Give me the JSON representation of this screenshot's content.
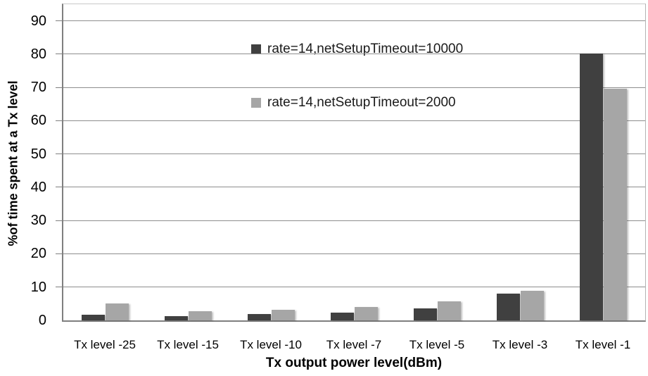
{
  "chart_data": {
    "type": "bar",
    "title": "",
    "xlabel": "Tx output power level(dBm)",
    "ylabel": "%of time spent at a Tx level",
    "categories": [
      "Tx level -25",
      "Tx level -15",
      "Tx level -10",
      "Tx level -7",
      "Tx level -5",
      "Tx level -3",
      "Tx level -1"
    ],
    "series": [
      {
        "name": "rate=14,netSetupTimeout=10000",
        "color": "#404040",
        "values": [
          1.8,
          1.2,
          2.0,
          2.4,
          3.7,
          8.0,
          80.2
        ]
      },
      {
        "name": "rate=14,netSetupTimeout=2000",
        "color": "#a6a6a6",
        "values": [
          5.0,
          2.8,
          3.2,
          4.1,
          5.8,
          8.9,
          69.7
        ]
      }
    ],
    "ylim": [
      0,
      95
    ],
    "yticks": [
      0,
      10,
      20,
      30,
      40,
      50,
      60,
      70,
      80,
      90
    ],
    "grid": true,
    "legend_position": "top-center-inside",
    "colors": {
      "gridline": "#8e8e8e",
      "axis": "#7f7f7f",
      "text": "#000000",
      "background": "#ffffff"
    }
  }
}
